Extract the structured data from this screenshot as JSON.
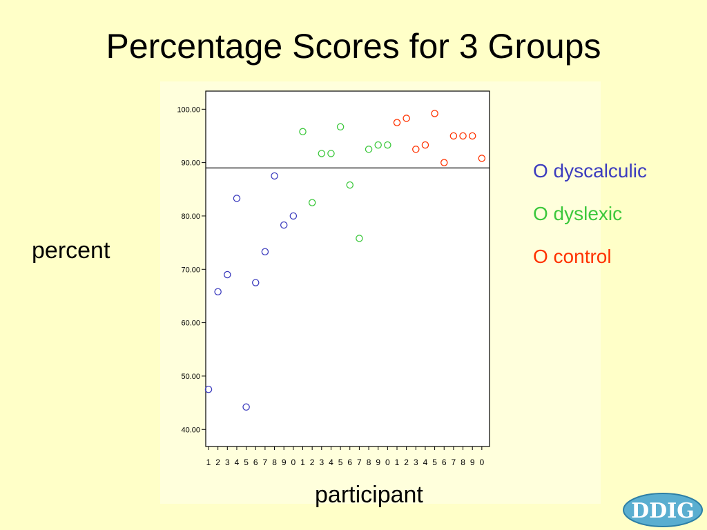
{
  "title": "Percentage Scores for 3 Groups",
  "logo_text": "DDIG",
  "chart_data": {
    "type": "scatter",
    "title": "Percentage Scores for 3 Groups",
    "xlabel": "participant",
    "ylabel": "percent",
    "ylim": [
      36.8,
      103.4
    ],
    "yticks": [
      "40.00",
      "50.00",
      "60.00",
      "70.00",
      "80.00",
      "90.00",
      "100.00"
    ],
    "categories": [
      "1",
      "2",
      "3",
      "4",
      "5",
      "6",
      "7",
      "8",
      "9",
      "0",
      "1",
      "2",
      "3",
      "4",
      "5",
      "6",
      "7",
      "8",
      "9",
      "0",
      "1",
      "2",
      "3",
      "4",
      "5",
      "6",
      "7",
      "8",
      "9",
      "0"
    ],
    "reference_line": 89.0,
    "grid": false,
    "legend_position": "right",
    "series": [
      {
        "name": "O dyscalculic",
        "color": "#3c3cbe",
        "values": [
          47.5,
          65.8,
          69.0,
          83.3,
          44.2,
          67.5,
          73.3,
          87.5,
          78.3,
          80.0
        ]
      },
      {
        "name": "O dyslexic",
        "color": "#3cc83c",
        "values": [
          95.8,
          82.5,
          91.7,
          91.7,
          96.7,
          85.8,
          75.8,
          92.5,
          93.3,
          93.3
        ]
      },
      {
        "name": "O control",
        "color": "#ff3200",
        "values": [
          97.5,
          98.3,
          92.5,
          93.3,
          99.2,
          90.0,
          95.0,
          95.0,
          95.0,
          90.8
        ]
      }
    ]
  }
}
